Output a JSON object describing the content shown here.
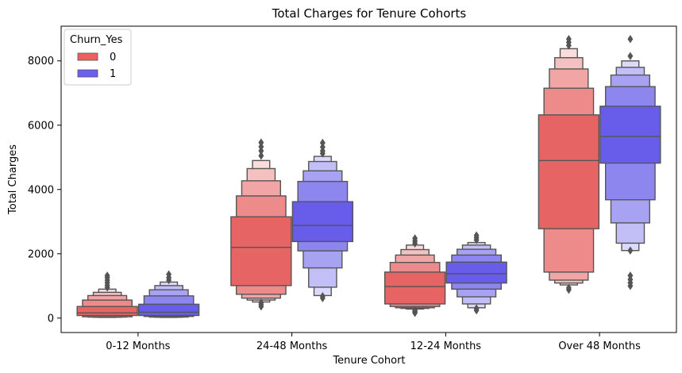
{
  "chart_data": {
    "type": "boxen",
    "title": "Total Charges for Tenure Cohorts",
    "xlabel": "Tenure Cohort",
    "ylabel": "Total Charges",
    "categories": [
      "0-12 Months",
      "24-48 Months",
      "12-24 Months",
      "Over 48 Months"
    ],
    "yticks": [
      0,
      2000,
      4000,
      6000,
      8000
    ],
    "ylim": [
      -450,
      9080
    ],
    "grid": false,
    "legend": {
      "title": "Churn_Yes",
      "position": "top-left"
    },
    "series": [
      {
        "name": "0",
        "color": "#e45756",
        "groups": [
          {
            "median": 160,
            "boxes": [
              [
                80,
                360
              ],
              [
                40,
                560
              ],
              [
                30,
                700
              ],
              [
                25,
                800
              ],
              [
                20,
                900
              ]
            ],
            "outliers": [
              950,
              1020,
              1100,
              1180,
              1260,
              1320
            ]
          },
          {
            "median": 2200,
            "boxes": [
              [
                1010,
                3150
              ],
              [
                740,
                3800
              ],
              [
                620,
                4270
              ],
              [
                560,
                4650
              ],
              [
                500,
                4900
              ]
            ],
            "outliers": [
              360,
              420,
              480,
              5050,
              5200,
              5330,
              5460
            ]
          },
          {
            "median": 980,
            "boxes": [
              [
                440,
                1430
              ],
              [
                360,
                1730
              ],
              [
                320,
                1960
              ],
              [
                300,
                2130
              ],
              [
                280,
                2270
              ]
            ],
            "outliers": [
              160,
              200,
              240,
              2320,
              2400,
              2480
            ]
          },
          {
            "median": 4900,
            "boxes": [
              [
                2780,
                6320
              ],
              [
                1430,
                7150
              ],
              [
                1180,
                7750
              ],
              [
                1090,
                8100
              ],
              [
                1030,
                8380
              ]
            ],
            "outliers": [
              880,
              940,
              8480,
              8580,
              8680
            ]
          }
        ]
      },
      {
        "name": "1",
        "color": "#5a4fe8",
        "groups": [
          {
            "median": 180,
            "boxes": [
              [
                80,
                430
              ],
              [
                50,
                690
              ],
              [
                30,
                880
              ],
              [
                25,
                1010
              ],
              [
                20,
                1120
              ]
            ],
            "outliers": [
              1180,
              1260,
              1360
            ]
          },
          {
            "median": 2880,
            "boxes": [
              [
                2380,
                3620
              ],
              [
                2090,
                4250
              ],
              [
                1560,
                4580
              ],
              [
                960,
                4870
              ],
              [
                700,
                5030
              ]
            ],
            "outliers": [
              620,
              680,
              5120,
              5200,
              5320,
              5450
            ]
          },
          {
            "median": 1380,
            "boxes": [
              [
                1090,
                1740
              ],
              [
                900,
                1960
              ],
              [
                660,
                2140
              ],
              [
                440,
                2270
              ],
              [
                320,
                2350
              ]
            ],
            "outliers": [
              240,
              300,
              2430,
              2500,
              2570
            ]
          },
          {
            "median": 5650,
            "boxes": [
              [
                4820,
                6590
              ],
              [
                3680,
                7200
              ],
              [
                2960,
                7560
              ],
              [
                2330,
                7800
              ],
              [
                2100,
                8000
              ]
            ],
            "outliers": [
              1000,
              1100,
              1200,
              1320,
              2100,
              8150,
              8680
            ]
          }
        ]
      }
    ]
  }
}
